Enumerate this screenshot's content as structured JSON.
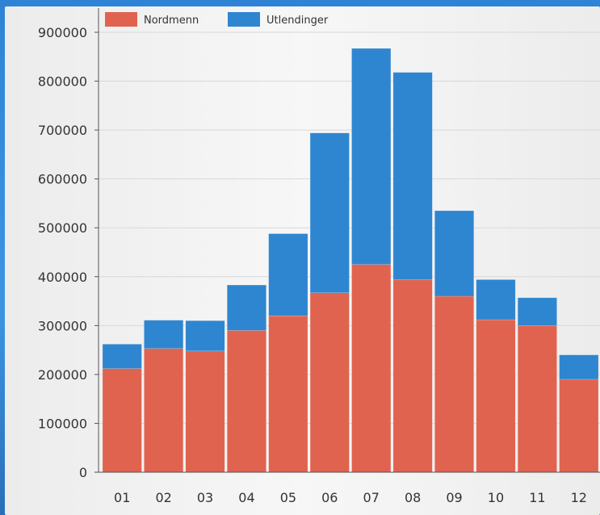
{
  "chart_data": {
    "type": "bar",
    "stacked": true,
    "categories": [
      "01",
      "02",
      "03",
      "04",
      "05",
      "06",
      "07",
      "08",
      "09",
      "10",
      "11",
      "12"
    ],
    "series": [
      {
        "name": "Nordmenn",
        "color": "#e0634f",
        "values": [
          212000,
          253000,
          248000,
          290000,
          320000,
          367000,
          425000,
          394000,
          360000,
          312000,
          300000,
          190000
        ]
      },
      {
        "name": "Utlendinger",
        "color": "#2f86d0",
        "values": [
          50000,
          58000,
          62000,
          93000,
          168000,
          327000,
          442000,
          424000,
          175000,
          82000,
          57000,
          50000
        ]
      }
    ],
    "ylim": [
      0,
      900000
    ],
    "yticks": [
      "0",
      "100000",
      "200000",
      "300000",
      "400000",
      "500000",
      "600000",
      "700000",
      "800000",
      "900000"
    ],
    "grid": true,
    "legend": "top-left"
  }
}
